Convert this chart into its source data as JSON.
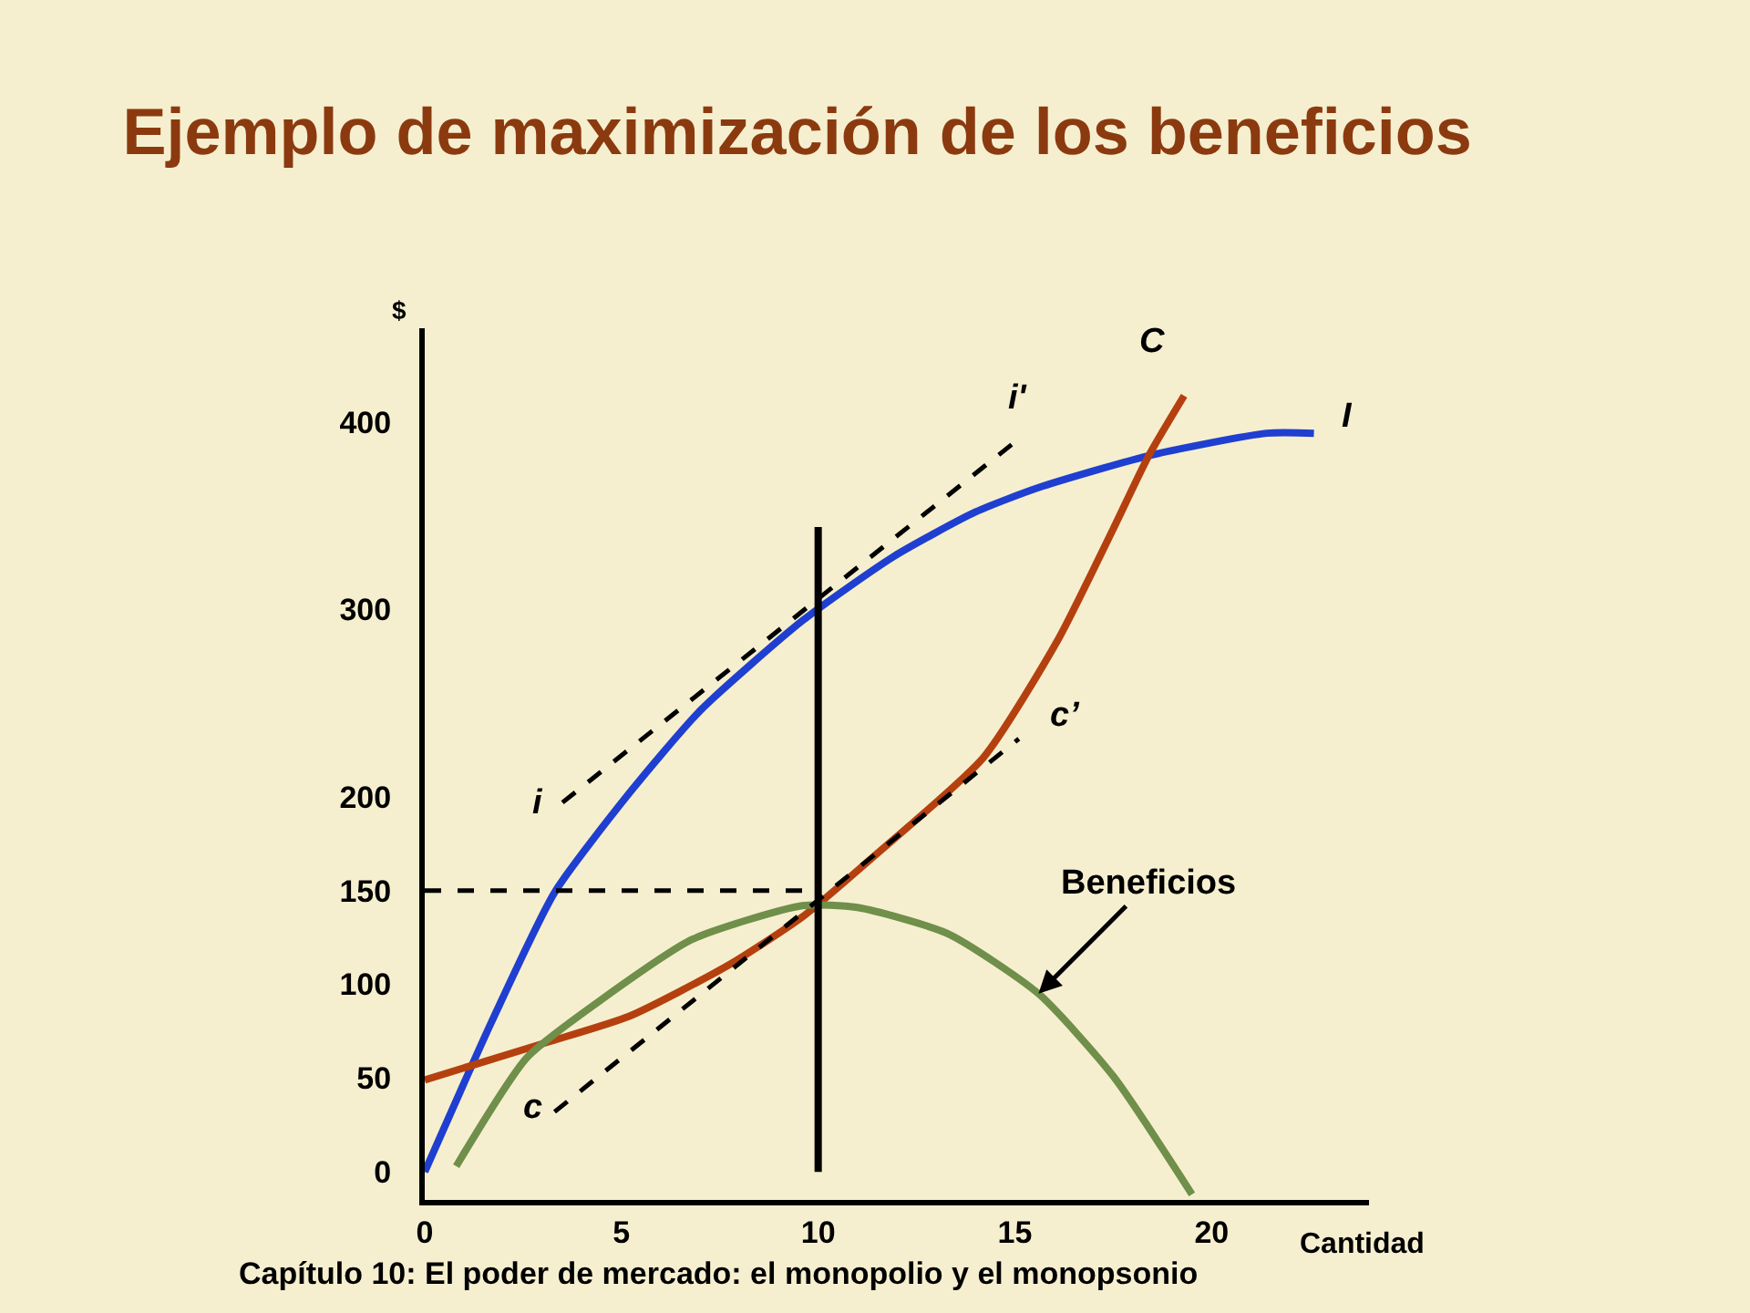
{
  "chart_data": {
    "type": "line",
    "title": "Ejemplo de maximización de los beneficios",
    "xlabel": "Cantidad",
    "ylabel": "$",
    "xlim": [
      0,
      24
    ],
    "ylim": [
      -15,
      450
    ],
    "xticks": [
      0,
      5,
      10,
      15,
      20
    ],
    "yticks": [
      0,
      50,
      100,
      150,
      200,
      300,
      400
    ],
    "grid": false,
    "marker": "none",
    "series": [
      {
        "color": "#1f3fd0",
        "line_style": "solid",
        "x": [
          0,
          1.7,
          3.3,
          5.2,
          7.0,
          9.6,
          11.9,
          14,
          15.6,
          18.4,
          21.4,
          22.6
        ],
        "values": [
          0,
          80,
          149,
          202,
          246,
          294,
          328,
          352,
          365,
          382,
          394,
          394
        ]
      },
      {
        "color": "#b5400f",
        "line_style": "solid",
        "x": [
          0,
          3.1,
          5.2,
          7.7,
          9.6,
          11.4,
          14.2,
          16.1,
          17.5,
          18.4,
          19.3
        ],
        "values": [
          49,
          69,
          83,
          110,
          136,
          168,
          221,
          284,
          343,
          382,
          414
        ]
      },
      {
        "color": "#6f8f4a",
        "line_style": "solid",
        "x": [
          0.8,
          2.6,
          4.5,
          6.8,
          9.6,
          11,
          13.3,
          15.6,
          17.5,
          19.5
        ],
        "values": [
          3,
          61,
          92,
          124,
          142,
          141,
          127,
          95,
          51,
          -12
        ]
      },
      {
        "color": "#000000",
        "line_style": "dashed",
        "x": [
          3.5,
          15.1
        ],
        "values": [
          197,
          391
        ]
      },
      {
        "color": "#000000",
        "line_style": "dashed",
        "x": [
          3.3,
          15.1
        ],
        "values": [
          32,
          231
        ]
      },
      {
        "color": "#000000",
        "line_style": "dashed",
        "x": [
          0,
          10
        ],
        "values": [
          150,
          150
        ]
      },
      {
        "color": "#000000",
        "line_style": "solid",
        "x": [
          10,
          10
        ],
        "values": [
          0,
          344
        ]
      }
    ],
    "annotations": [
      {
        "text": "C",
        "x": 19.3,
        "y": 414
      },
      {
        "text": "I",
        "x": 22.6,
        "y": 394
      },
      {
        "text": "i'",
        "x": 15.1,
        "y": 391
      },
      {
        "text": "i",
        "x": 3.5,
        "y": 197
      },
      {
        "text": "c’",
        "x": 15.1,
        "y": 231
      },
      {
        "text": "c",
        "x": 3.3,
        "y": 32
      },
      {
        "text": "Beneficios",
        "x": 15.6,
        "y": 95
      },
      "Capítulo 10: El poder de mercado: el monopolio y el monopsonio"
    ]
  }
}
